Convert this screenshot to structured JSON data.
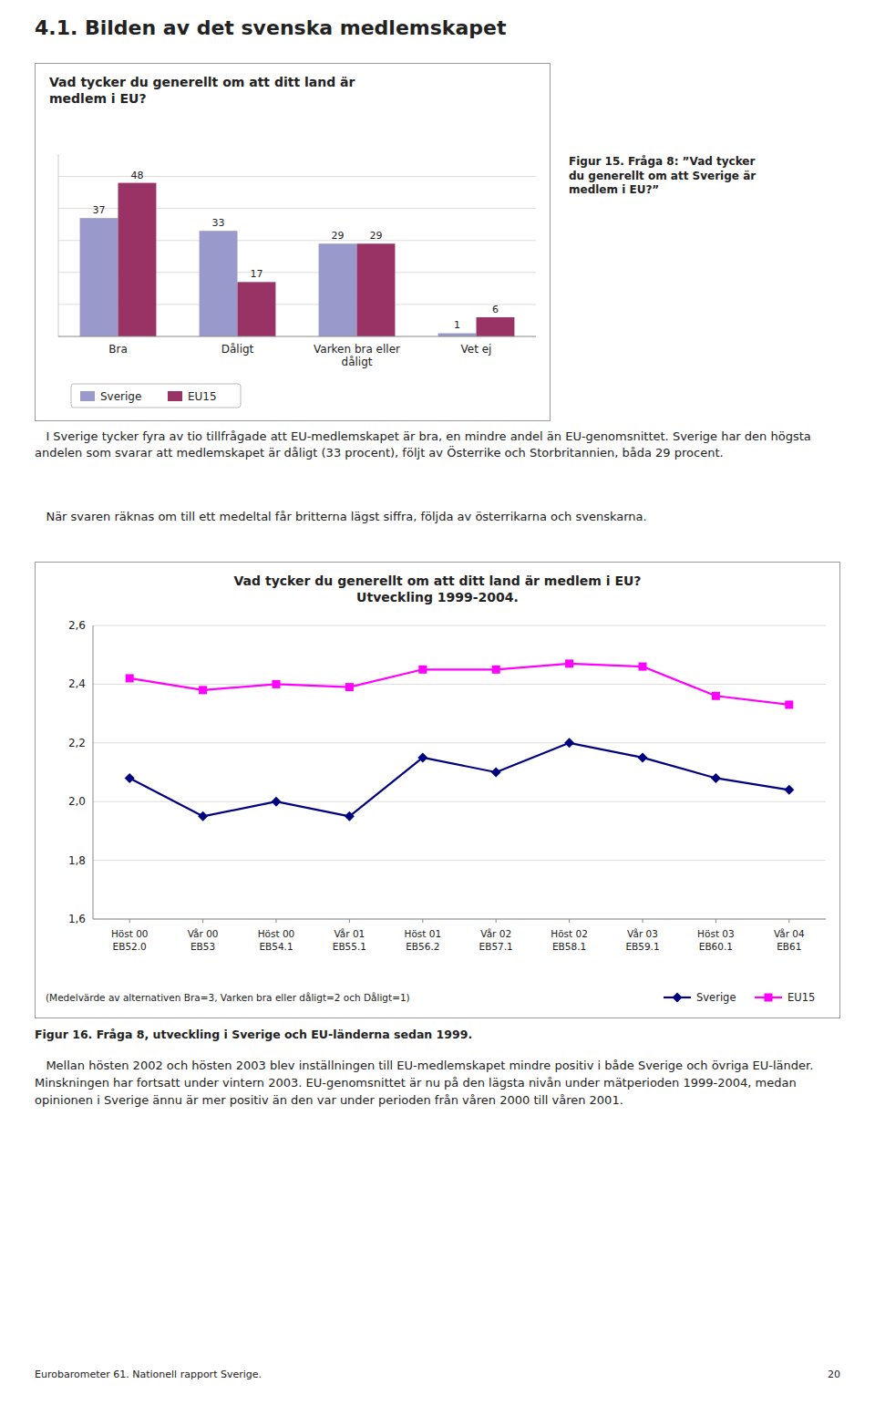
{
  "page_title": "4.1. Bilden av det svenska medlemskapet",
  "paragraphs": [
    "   I Sverige tycker fyra av tio tillfrågade att EU-medlemskapet är bra, en mindre andel än EU-genomsnittet. Sverige har den högsta andelen som svarar att medlemskapet är dåligt (33 procent), följt av Österrike och Storbritannien, båda 29 procent.",
    "   När svaren räknas om till ett medeltal får britterna lägst siffra, följda av österrikarna och svenskarna.",
    "   Mellan hösten 2002 och hösten 2003 blev inställningen till EU-medlemskapet mindre positiv i både Sverige och övriga EU-länder. Minskningen har fortsatt under vintern 2003. EU-genomsnittet är nu på den lägsta nivån under mätperioden 1999-2004, medan opinionen i Sverige ännu är mer positiv än den var under perioden från våren 2000 till våren 2001."
  ],
  "footer_left": "Eurobarometer 61. Nationell rapport Sverige.",
  "footer_right": "20",
  "chart_data": [
    {
      "type": "bar",
      "title": "Vad tycker du generellt om att ditt land är\nmedlem i EU?",
      "caption": "Figur 15. Fråga 8: ”Vad tycker\ndu generellt om att Sverige är\nmedlem i EU?”",
      "categories": [
        "Bra",
        "Dåligt",
        "Varken bra eller\ndåligt",
        "Vet ej"
      ],
      "series": [
        {
          "name": "Sverige",
          "color": "#9999CC",
          "values": [
            37,
            33,
            29,
            1
          ]
        },
        {
          "name": "EU15",
          "color": "#993366",
          "values": [
            48,
            17,
            29,
            6
          ]
        }
      ],
      "ylim": [
        0,
        57
      ],
      "yticks": [
        10,
        20,
        30,
        40,
        50
      ],
      "grid": true,
      "tick_labels": "x",
      "data_labels": true,
      "legend": "bottom"
    },
    {
      "type": "line",
      "title": "Vad tycker du generellt om att ditt land är medlem i EU?\nUtveckling 1999-2004.",
      "caption": "Figur 16. Fråga 8, utveckling i Sverige och EU-länderna sedan 1999.",
      "note": "(Medelvärde av alternativen Bra=3, Varken bra eller dåligt=2 och Dåligt=1)",
      "categories": [
        "Höst 00\nEB52.0",
        "Vår 00\nEB53",
        "Höst 00\nEB54.1",
        "Vår 01\nEB55.1",
        "Höst 01\nEB56.2",
        "Vår 02\nEB57.1",
        "Höst 02\nEB58.1",
        "Vår 03\nEB59.1",
        "Höst 03\nEB60.1",
        "Vår 04\nEB61"
      ],
      "series": [
        {
          "name": "Sverige",
          "color": "#000080",
          "marker": "diamond",
          "values": [
            2.08,
            1.95,
            2.0,
            1.95,
            2.15,
            2.1,
            2.2,
            2.15,
            2.08,
            2.04
          ]
        },
        {
          "name": "EU15",
          "color": "#FF00FF",
          "marker": "square",
          "values": [
            2.42,
            2.38,
            2.4,
            2.39,
            2.45,
            2.45,
            2.47,
            2.46,
            2.36,
            2.33
          ]
        }
      ],
      "ylim": [
        1.6,
        2.6
      ],
      "yticks": [
        {
          "value": 1.6,
          "label": "1,6"
        },
        {
          "value": 1.8,
          "label": "1,8"
        },
        {
          "value": 2.0,
          "label": "2,0"
        },
        {
          "value": 2.2,
          "label": "2,2"
        },
        {
          "value": 2.4,
          "label": "2,4"
        },
        {
          "value": 2.6,
          "label": "2,6"
        }
      ],
      "grid": true,
      "legend": "bottom"
    }
  ]
}
